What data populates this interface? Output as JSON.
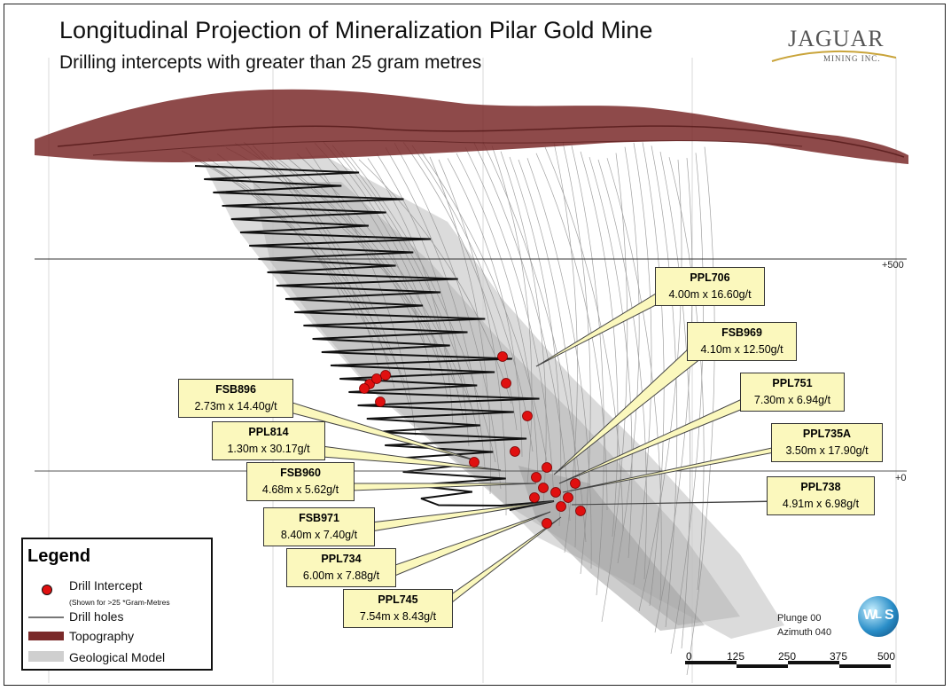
{
  "title": "Longitudinal Projection of Mineralization Pilar Gold Mine",
  "subtitle": "Drilling intercepts with greater than 25 gram metres",
  "logo": {
    "name": "JAGUAR",
    "sub": "MINING INC."
  },
  "elevations": [
    "+500",
    "+0"
  ],
  "callouts": [
    {
      "name": "PPL706",
      "value": "4.00m x 16.60g/t"
    },
    {
      "name": "FSB969",
      "value": "4.10m x 12.50g/t"
    },
    {
      "name": "PPL751",
      "value": "7.30m x 6.94g/t"
    },
    {
      "name": "PPL735A",
      "value": "3.50m x 17.90g/t"
    },
    {
      "name": "PPL738",
      "value": "4.91m x 6.98g/t"
    },
    {
      "name": "FSB896",
      "value": "2.73m x 14.40g/t"
    },
    {
      "name": "PPL814",
      "value": "1.30m x 30.17g/t"
    },
    {
      "name": "FSB960",
      "value": "4.68m x 5.62g/t"
    },
    {
      "name": "FSB971",
      "value": "8.40m x 7.40g/t"
    },
    {
      "name": "PPL734",
      "value": "6.00m x 7.88g/t"
    },
    {
      "name": "PPL745",
      "value": "7.54m x 8.43g/t"
    }
  ],
  "legend": {
    "heading": "Legend",
    "drill_intercept": "Drill Intercept",
    "drill_intercept_note": "(Shown for >25 *Gram-Metres",
    "drill_holes": "Drill holes",
    "topography": "Topography",
    "geological_model": "Geological Model"
  },
  "orientation": {
    "plunge": "Plunge 00",
    "azimuth": "Azimuth 040"
  },
  "wls_logo": {
    "letters": [
      "W",
      "L",
      "S"
    ]
  },
  "scale_bar": {
    "labels": [
      "0",
      "125",
      "250",
      "375",
      "500"
    ]
  },
  "colors": {
    "topography": "#7a2a2a",
    "intercept": "#e01010",
    "callout_bg": "#fbf8bd",
    "model": "#c8c8c8"
  }
}
